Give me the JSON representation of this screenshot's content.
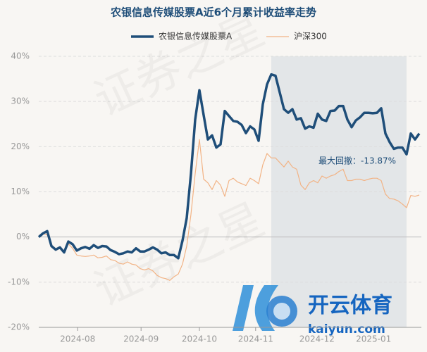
{
  "chart_data": {
    "type": "line",
    "title": "农银信息传媒股票A近6个月累计收益率走势",
    "x": [
      0,
      1,
      2,
      3,
      4,
      5,
      6,
      7,
      8,
      9,
      10,
      11,
      12,
      13,
      14,
      15,
      16,
      17,
      18,
      19,
      20,
      21,
      22,
      23,
      24,
      25,
      26,
      27,
      28,
      29,
      30,
      31,
      32,
      33,
      34,
      35,
      36,
      37,
      38,
      39,
      40,
      41,
      42,
      43,
      44,
      45,
      46,
      47,
      48,
      49,
      50,
      51,
      52,
      53,
      54,
      55,
      56,
      57,
      58,
      59,
      60,
      61,
      62,
      63,
      64,
      65,
      66,
      67,
      68,
      69,
      70,
      71,
      72,
      73,
      74,
      75,
      76,
      77,
      78,
      79,
      80,
      81,
      82,
      83,
      84,
      85,
      86,
      87,
      88,
      89,
      90
    ],
    "series": [
      {
        "name": "农银信息传媒股票A",
        "color": "#1f4e79",
        "width": 3.5,
        "values": [
          0,
          0.8,
          1.3,
          -2,
          -2.8,
          -2.3,
          -3.4,
          -1,
          -1.6,
          -3,
          -2.5,
          -2.2,
          -2.6,
          -1.8,
          -2.4,
          -2,
          -2.1,
          -2.9,
          -3.3,
          -3.8,
          -3.6,
          -3.2,
          -3.4,
          -2.5,
          -3.2,
          -3.2,
          -2.8,
          -2.3,
          -2.8,
          -3.6,
          -3.4,
          -4,
          -4,
          -4.7,
          -0.8,
          4.2,
          14,
          26,
          32.5,
          27,
          21.6,
          22.5,
          19.8,
          20.5,
          27.9,
          26.8,
          25.7,
          25.5,
          24.8,
          23,
          24.5,
          23.8,
          21.3,
          29.4,
          33.8,
          36,
          35.7,
          32,
          28.3,
          27.5,
          28.3,
          26,
          26.3,
          24,
          24.5,
          24.2,
          27.3,
          26,
          25.7,
          27.9,
          28,
          29,
          29,
          26,
          24.3,
          25.8,
          26.5,
          27.5,
          27.5,
          27.4,
          27.5,
          28.5,
          22.9,
          21,
          19.5,
          19.8,
          19.8,
          18.3,
          22.9,
          21.6,
          22.9
        ]
      },
      {
        "name": "沪深300",
        "color": "#f2b385",
        "width": 1.2,
        "values": [
          0,
          0.7,
          0.5,
          -2,
          -3,
          -2.5,
          -3.5,
          -1.5,
          -2.5,
          -4,
          -4.2,
          -4.3,
          -4.2,
          -4,
          -4.6,
          -4.5,
          -4.2,
          -5,
          -5.2,
          -5.8,
          -6,
          -5.5,
          -6,
          -6.2,
          -7,
          -7.3,
          -7,
          -7.5,
          -8.5,
          -9,
          -9.2,
          -9.6,
          -8.8,
          -8.2,
          -6,
          -2,
          5,
          14,
          21.6,
          12.8,
          12,
          10.5,
          12.5,
          11.5,
          9,
          12.5,
          13,
          12.2,
          11.8,
          11.4,
          13,
          12.5,
          11.8,
          16,
          18.5,
          17.5,
          17.5,
          16.5,
          15.5,
          16.8,
          15.5,
          15,
          11.5,
          10.5,
          12,
          12.5,
          12,
          13.5,
          13,
          13.5,
          13.8,
          14.5,
          15,
          12.5,
          12.5,
          12.8,
          12.8,
          12.5,
          12.8,
          13,
          13,
          12.5,
          9.5,
          8.5,
          8.4,
          8,
          7.3,
          6.5,
          9.2,
          9,
          9.3
        ]
      }
    ],
    "xlim": [
      0,
      90.5
    ],
    "xticks": [
      {
        "value": 9.2,
        "label": "2024-08"
      },
      {
        "value": 24.2,
        "label": "2024-09"
      },
      {
        "value": 38,
        "label": "2024-10"
      },
      {
        "value": 51.3,
        "label": "2024-11"
      },
      {
        "value": 65.8,
        "label": "2024-12"
      },
      {
        "value": 79.2,
        "label": "2025-01"
      }
    ],
    "ylim": [
      -20,
      40
    ],
    "yticks": [
      {
        "value": -20,
        "label": "-20%"
      },
      {
        "value": -10,
        "label": "-10%"
      },
      {
        "value": 0,
        "label": "0%"
      },
      {
        "value": 10,
        "label": "10%"
      },
      {
        "value": 20,
        "label": "20%"
      },
      {
        "value": 30,
        "label": "30%"
      },
      {
        "value": 40,
        "label": "40%"
      }
    ],
    "grid": true,
    "drawdown_range": [
      55,
      87
    ],
    "annotation": "最大回撤：-13.87%",
    "watermark": [
      "证券之星",
      "开云体育",
      "kaiyun.com"
    ]
  }
}
